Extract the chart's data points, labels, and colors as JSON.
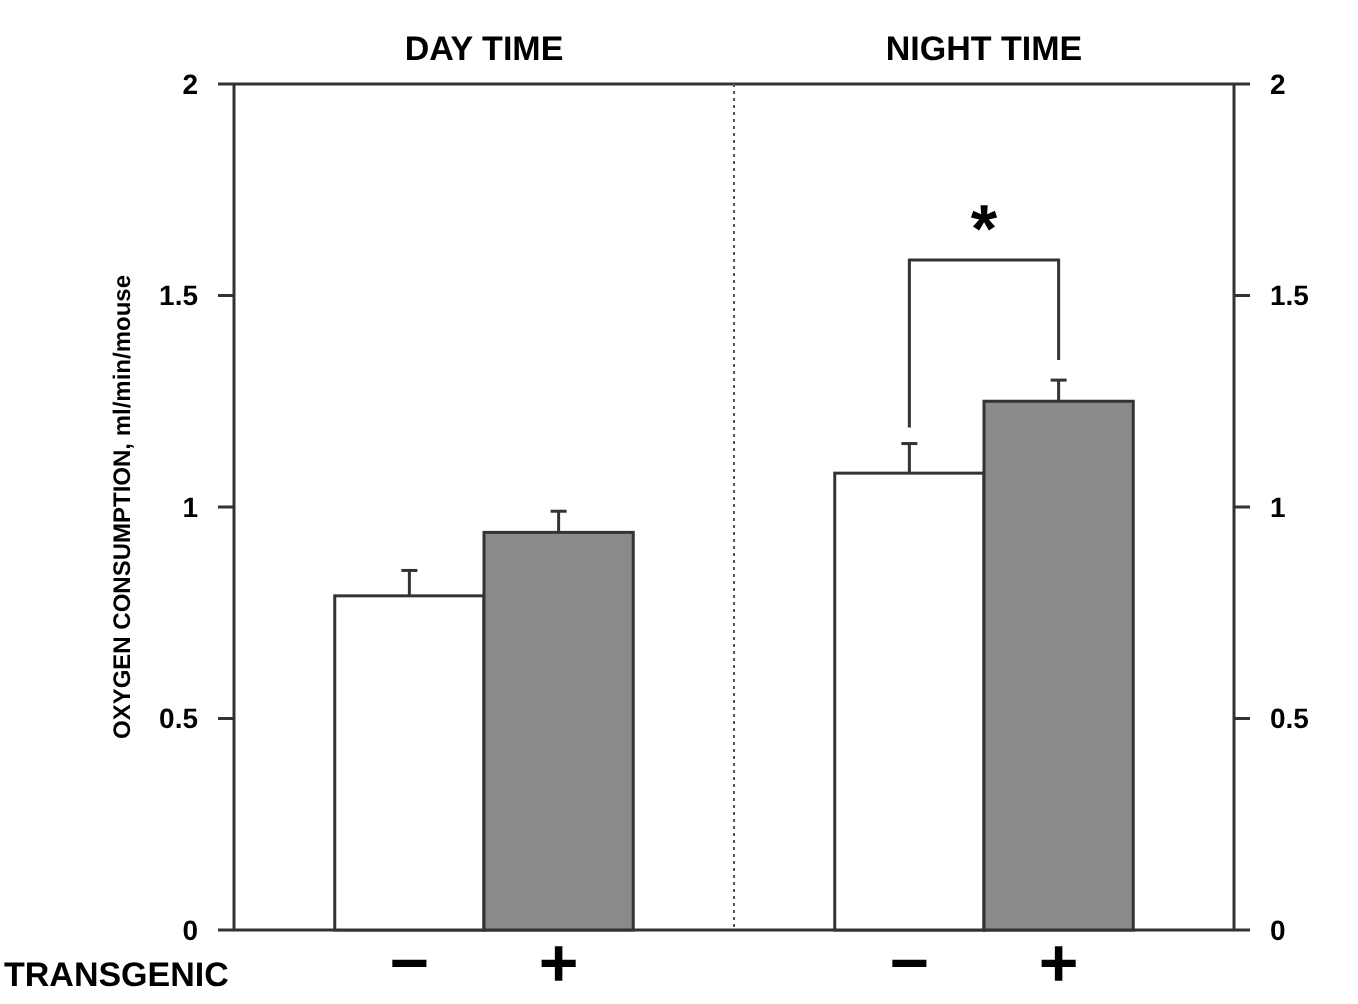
{
  "chart_data": [
    {
      "type": "bar",
      "title": "DAY TIME",
      "ylabel": "OXYGEN CONSUMPTION, ml/min/mouse",
      "categories": [
        "−",
        "+"
      ],
      "values": [
        0.79,
        0.94
      ],
      "errors": [
        [
          0.79,
          0.85
        ],
        [
          0.94,
          0.99
        ]
      ],
      "colors": [
        "#ffffff",
        "#8a8a8a"
      ],
      "ylim": [
        0,
        2
      ],
      "yticks": [
        0,
        0.5,
        1,
        1.5,
        2
      ],
      "annotations": [
        "TRANSGENIC"
      ]
    },
    {
      "type": "bar",
      "title": "NIGHT TIME",
      "categories": [
        "−",
        "+"
      ],
      "colors": [
        "#ffffff",
        "#8a8a8a"
      ],
      "y2lim": [
        0,
        2
      ],
      "y2ticks": [
        0,
        0.5,
        1,
        1.5,
        2
      ],
      "series": [
        {
          "axis": "y2",
          "values": [
            1.08,
            1.25
          ],
          "errors": [
            [
              1.08,
              1.15
            ],
            [
              1.25,
              1.3
            ]
          ]
        }
      ],
      "annotations": [
        "*"
      ]
    }
  ]
}
